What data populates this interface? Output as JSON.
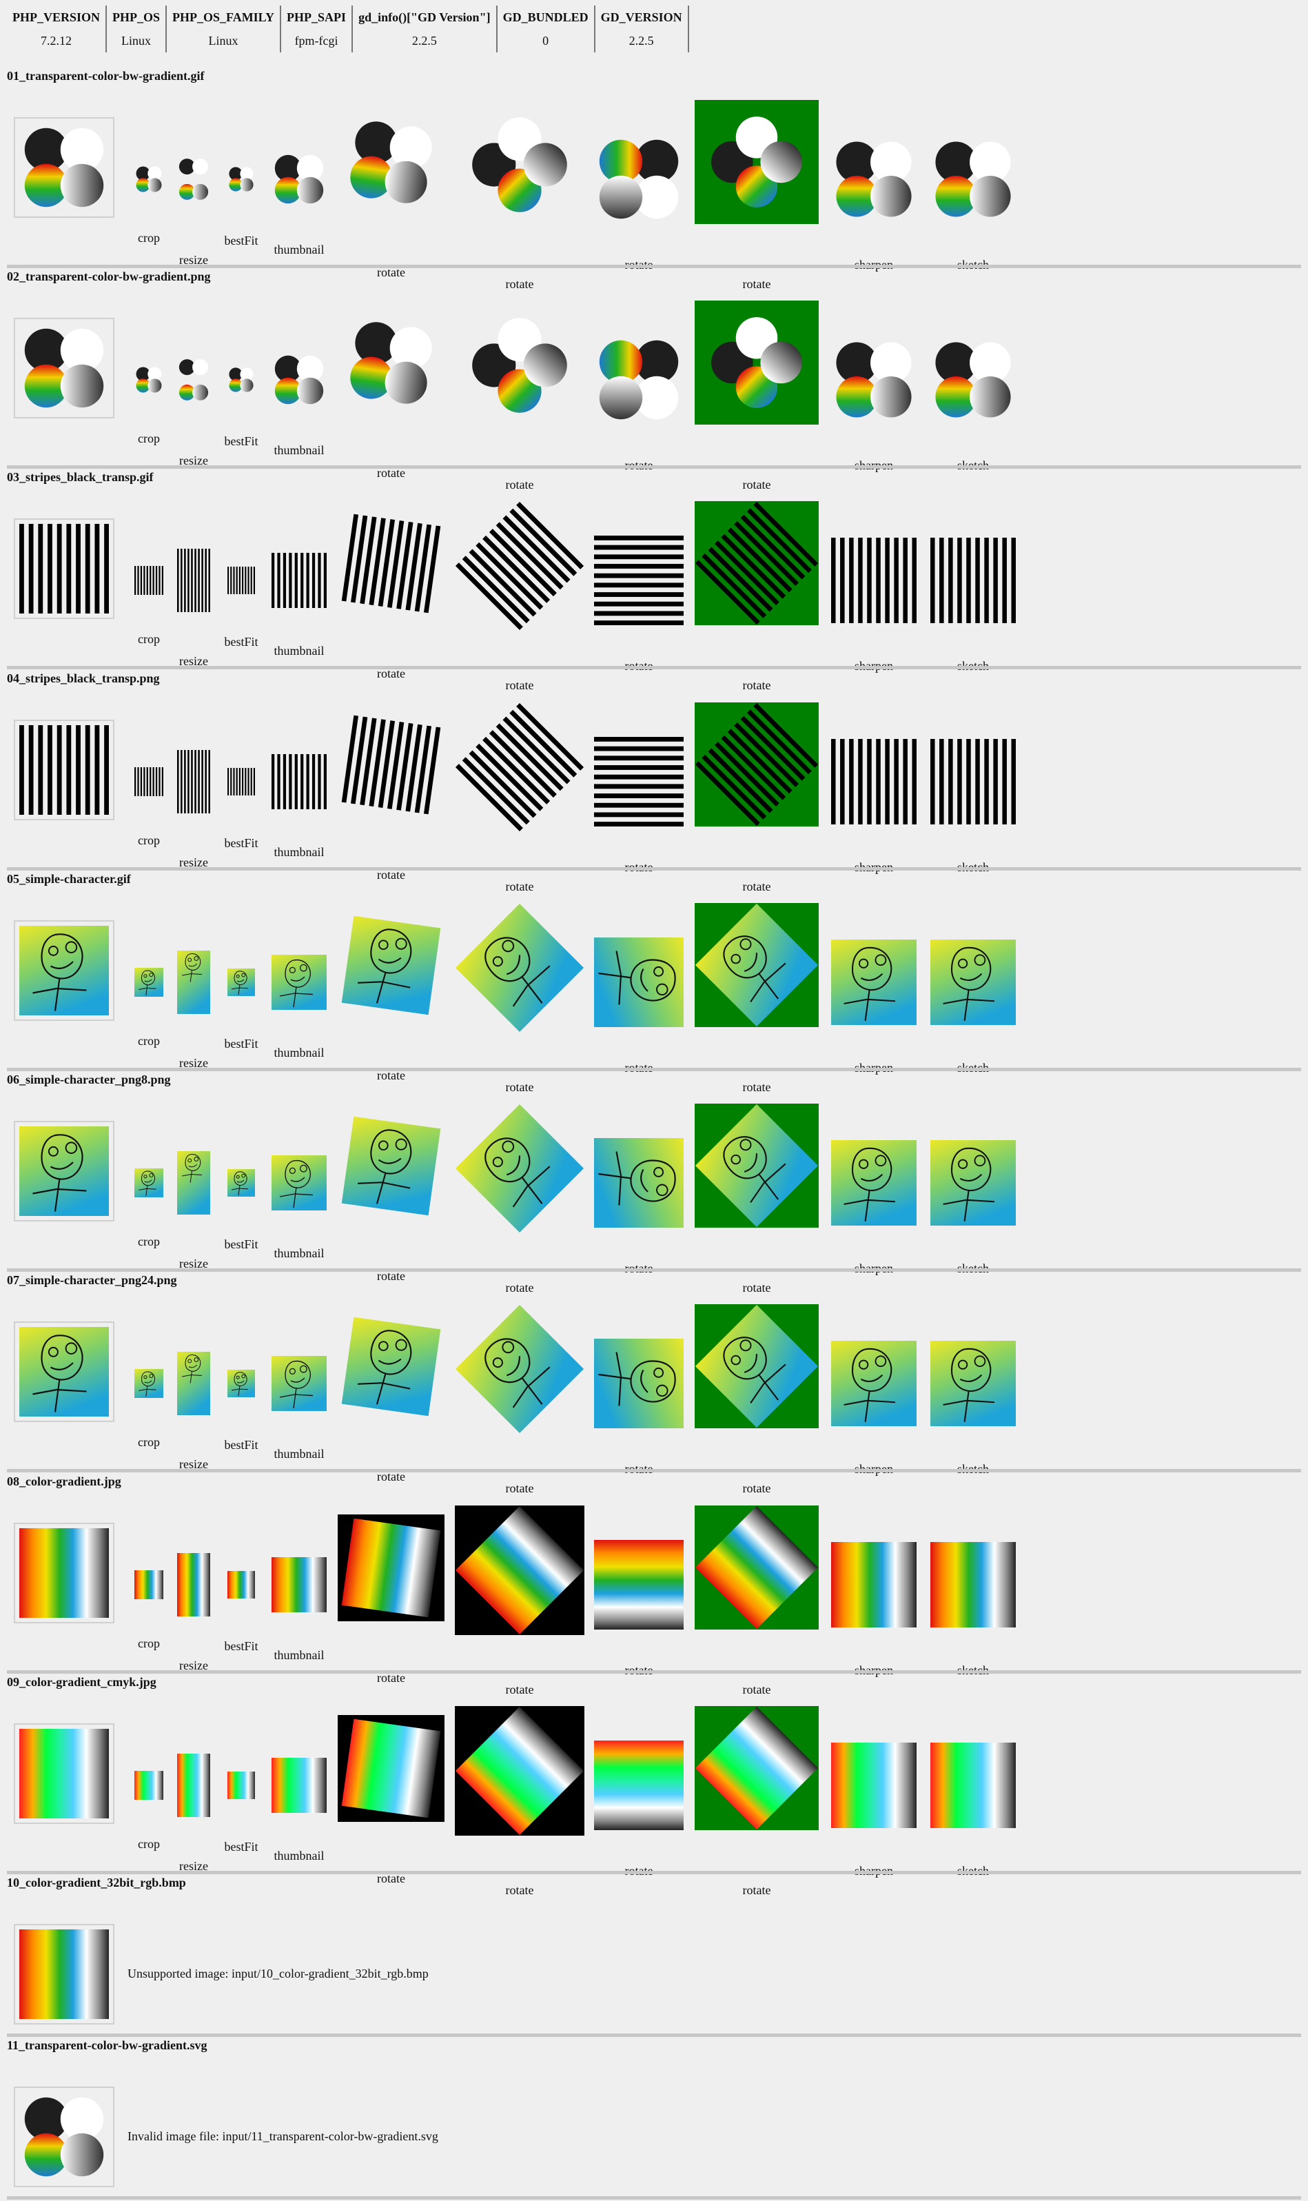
{
  "env": {
    "headers": [
      "PHP_VERSION",
      "PHP_OS",
      "PHP_OS_FAMILY",
      "PHP_SAPI",
      "gd_info()[\"GD Version\"]",
      "GD_BUNDLED",
      "GD_VERSION"
    ],
    "values": [
      "7.2.12",
      "Linux",
      "Linux",
      "fpm-fcgi",
      "2.2.5",
      "0",
      "2.2.5"
    ]
  },
  "captions": [
    "crop",
    "resize",
    "bestFit",
    "thumbnail",
    "rotate",
    "rotate",
    "rotate",
    "rotate",
    "sharpen",
    "sketch"
  ],
  "colors": {
    "background": "#efefef",
    "green_bg": "#008000",
    "separator": "#c7c7c7"
  },
  "sections": [
    {
      "title": "01_transparent-color-bw-gradient.gif",
      "kind": "circles"
    },
    {
      "title": "02_transparent-color-bw-gradient.png",
      "kind": "circles"
    },
    {
      "title": "03_stripes_black_transp.gif",
      "kind": "stripes"
    },
    {
      "title": "04_stripes_black_transp.png",
      "kind": "stripes"
    },
    {
      "title": "05_simple-character.gif",
      "kind": "character"
    },
    {
      "title": "06_simple-character_png8.png",
      "kind": "character"
    },
    {
      "title": "07_simple-character_png24.png",
      "kind": "character"
    },
    {
      "title": "08_color-gradient.jpg",
      "kind": "gradient"
    },
    {
      "title": "09_color-gradient_cmyk.jpg",
      "kind": "gradient"
    },
    {
      "title": "10_color-gradient_32bit_rgb.bmp",
      "kind": "message",
      "message": "Unsupported image: input/10_color-gradient_32bit_rgb.bmp"
    },
    {
      "title": "11_transparent-color-bw-gradient.svg",
      "kind": "message",
      "message": "Invalid image file: input/11_transparent-color-bw-gradient.svg"
    }
  ]
}
